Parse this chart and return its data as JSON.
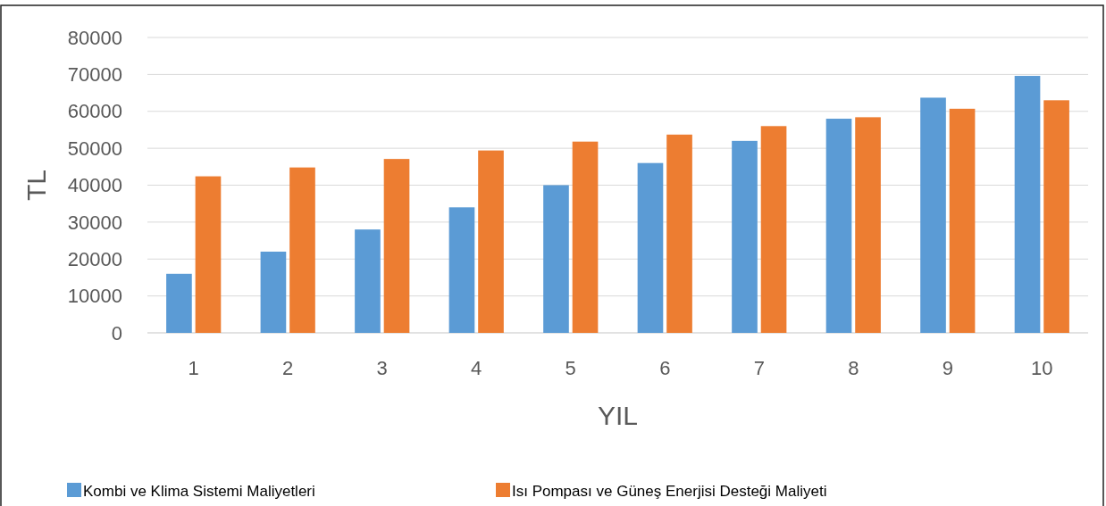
{
  "chart_data": {
    "type": "bar",
    "xlabel": "YIL",
    "ylabel": "TL",
    "categories": [
      "1",
      "2",
      "3",
      "4",
      "5",
      "6",
      "7",
      "8",
      "9",
      "10"
    ],
    "series": [
      {
        "name": "Kombi ve Klima Sistemi Maliyetleri",
        "color": "#5b9bd5",
        "values": [
          16000,
          22000,
          28000,
          34000,
          40000,
          46000,
          52000,
          58000,
          63700,
          69600
        ]
      },
      {
        "name": "Isı Pompası ve Güneş Enerjisi Desteği Maliyeti",
        "color": "#ed7d31",
        "values": [
          42400,
          44800,
          47100,
          49400,
          51800,
          53700,
          56000,
          58400,
          60700,
          63000
        ]
      }
    ],
    "ylim": [
      0,
      80000
    ],
    "yticks": [
      0,
      10000,
      20000,
      30000,
      40000,
      50000,
      60000,
      70000,
      80000
    ],
    "grid": "y",
    "legend": "bottom"
  }
}
